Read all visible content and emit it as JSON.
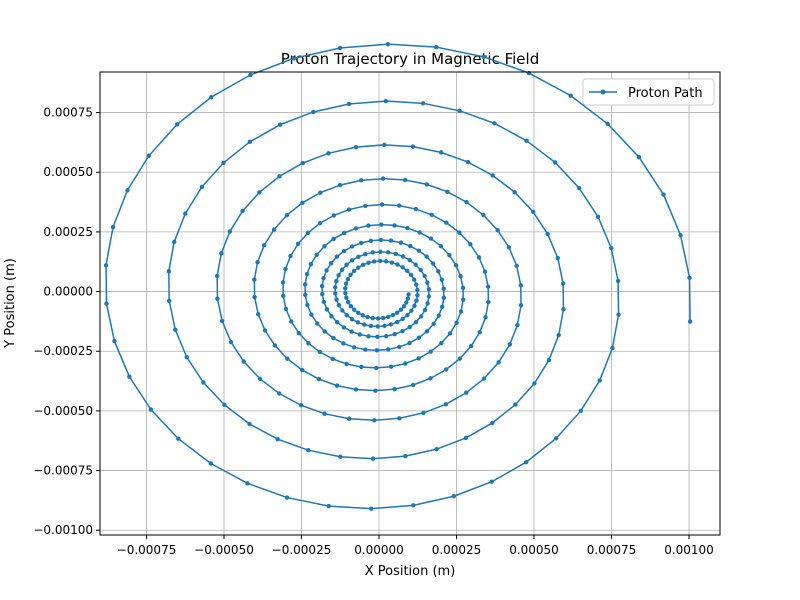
{
  "chart_data": {
    "type": "line",
    "title": "Proton Trajectory in Magnetic Field",
    "xlabel": "X Position (m)",
    "ylabel": "Y Position (m)",
    "xlim": [
      -0.0009,
      0.0011
    ],
    "ylim": [
      -0.00102,
      0.00092
    ],
    "xticks": [
      -0.00075,
      -0.0005,
      -0.00025,
      0.0,
      0.00025,
      0.0005,
      0.00075,
      0.001
    ],
    "xtick_labels": [
      "−0.00075",
      "−0.00050",
      "−0.00025",
      "0.00000",
      "0.00025",
      "0.00050",
      "0.00075",
      "0.00100"
    ],
    "yticks": [
      0.00075,
      0.0005,
      0.00025,
      0.0,
      -0.00025,
      -0.0005,
      -0.00075,
      -0.001
    ],
    "ytick_labels": [
      "0.00075",
      "0.00050",
      "0.00025",
      "0.00000",
      "−0.00025",
      "−0.00050",
      "−0.00075",
      "−0.00100"
    ],
    "grid": true,
    "legend_position": "top-right",
    "color": "#1f77b4",
    "series": [
      {
        "name": "Proton Path",
        "marker": "dot",
        "spiral": {
          "start": [
            0.001,
            -0.000125
          ],
          "center": [
            0.0,
            0.0
          ],
          "start_radius": 0.00101,
          "radius_decay_per_turn": 0.77,
          "turns": 9,
          "points_per_turn": 38,
          "direction": "counterclockwise",
          "vertical_scale": 1.1
        }
      }
    ]
  }
}
